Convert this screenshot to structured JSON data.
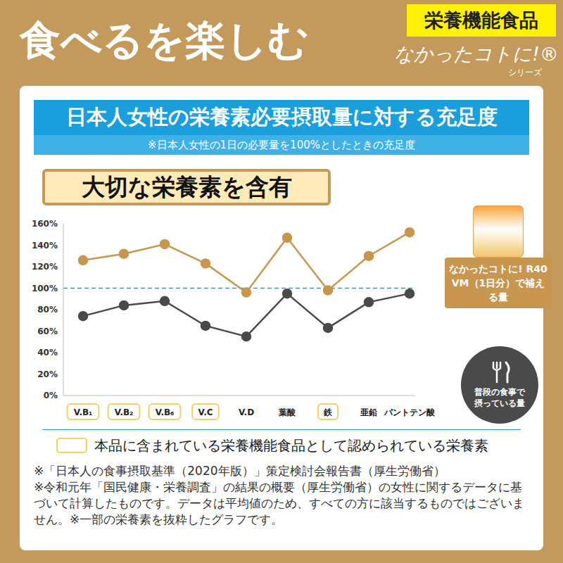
{
  "header": {
    "title": "食べるを楽しむ",
    "badge": "栄養機能食品",
    "brand": "なかったコトに!®",
    "brand_sub": "シリーズ"
  },
  "chart_data": {
    "type": "line",
    "title": "日本人女性の栄養素必要摂取量に対する充足度",
    "subtitle": "※日本人女性の1日の必要量を100%としたときの充足度",
    "annotation": "大切な栄養素を含有",
    "categories": [
      "V.B₁",
      "V.B₂",
      "V.B₆",
      "V.C",
      "V.D",
      "葉酸",
      "鉄",
      "亜鉛",
      "パントテン酸"
    ],
    "series": [
      {
        "name": "なかったコトに! R40 VM（1日分）で補える量",
        "color": "#c8964f",
        "marker": "circle",
        "values": [
          126,
          132,
          141,
          123,
          96,
          147,
          98,
          130,
          152
        ]
      },
      {
        "name": "普段の食事で摂っている量",
        "color": "#4a4a4a",
        "marker": "circle",
        "values": [
          74,
          84,
          88,
          65,
          55,
          95,
          63,
          87,
          95
        ]
      }
    ],
    "ylim": [
      0,
      160
    ],
    "yticks": [
      {
        "value": 0,
        "label": "0%"
      },
      {
        "value": 20,
        "label": "20%"
      },
      {
        "value": 40,
        "label": "40%"
      },
      {
        "value": 60,
        "label": "60%"
      },
      {
        "value": 80,
        "label": "80%"
      },
      {
        "value": 100,
        "label": "100%"
      },
      {
        "value": 120,
        "label": "120%"
      },
      {
        "value": 140,
        "label": "140%"
      },
      {
        "value": 160,
        "label": "160%"
      }
    ],
    "grid": false,
    "legend": "right",
    "reference_line": 100,
    "highlighted_categories": [
      "V.B₁",
      "V.B₂",
      "V.B₆",
      "V.C",
      "鉄"
    ],
    "highlight_note": "本品に含まれている栄養機能食品として認められている栄養素"
  },
  "footnotes": [
    "※「日本人の食事摂取基準（2020年版）」策定検討会報告書（厚生労働省）",
    "※令和元年「国民健康・栄養調査」の結果の概要（厚生労働省）の女性に関するデータに基づいて計算したものです。データは平均値のため、すべての方に該当するものではございません。",
    "※一部の栄養素を抜粋したグラフです。"
  ]
}
